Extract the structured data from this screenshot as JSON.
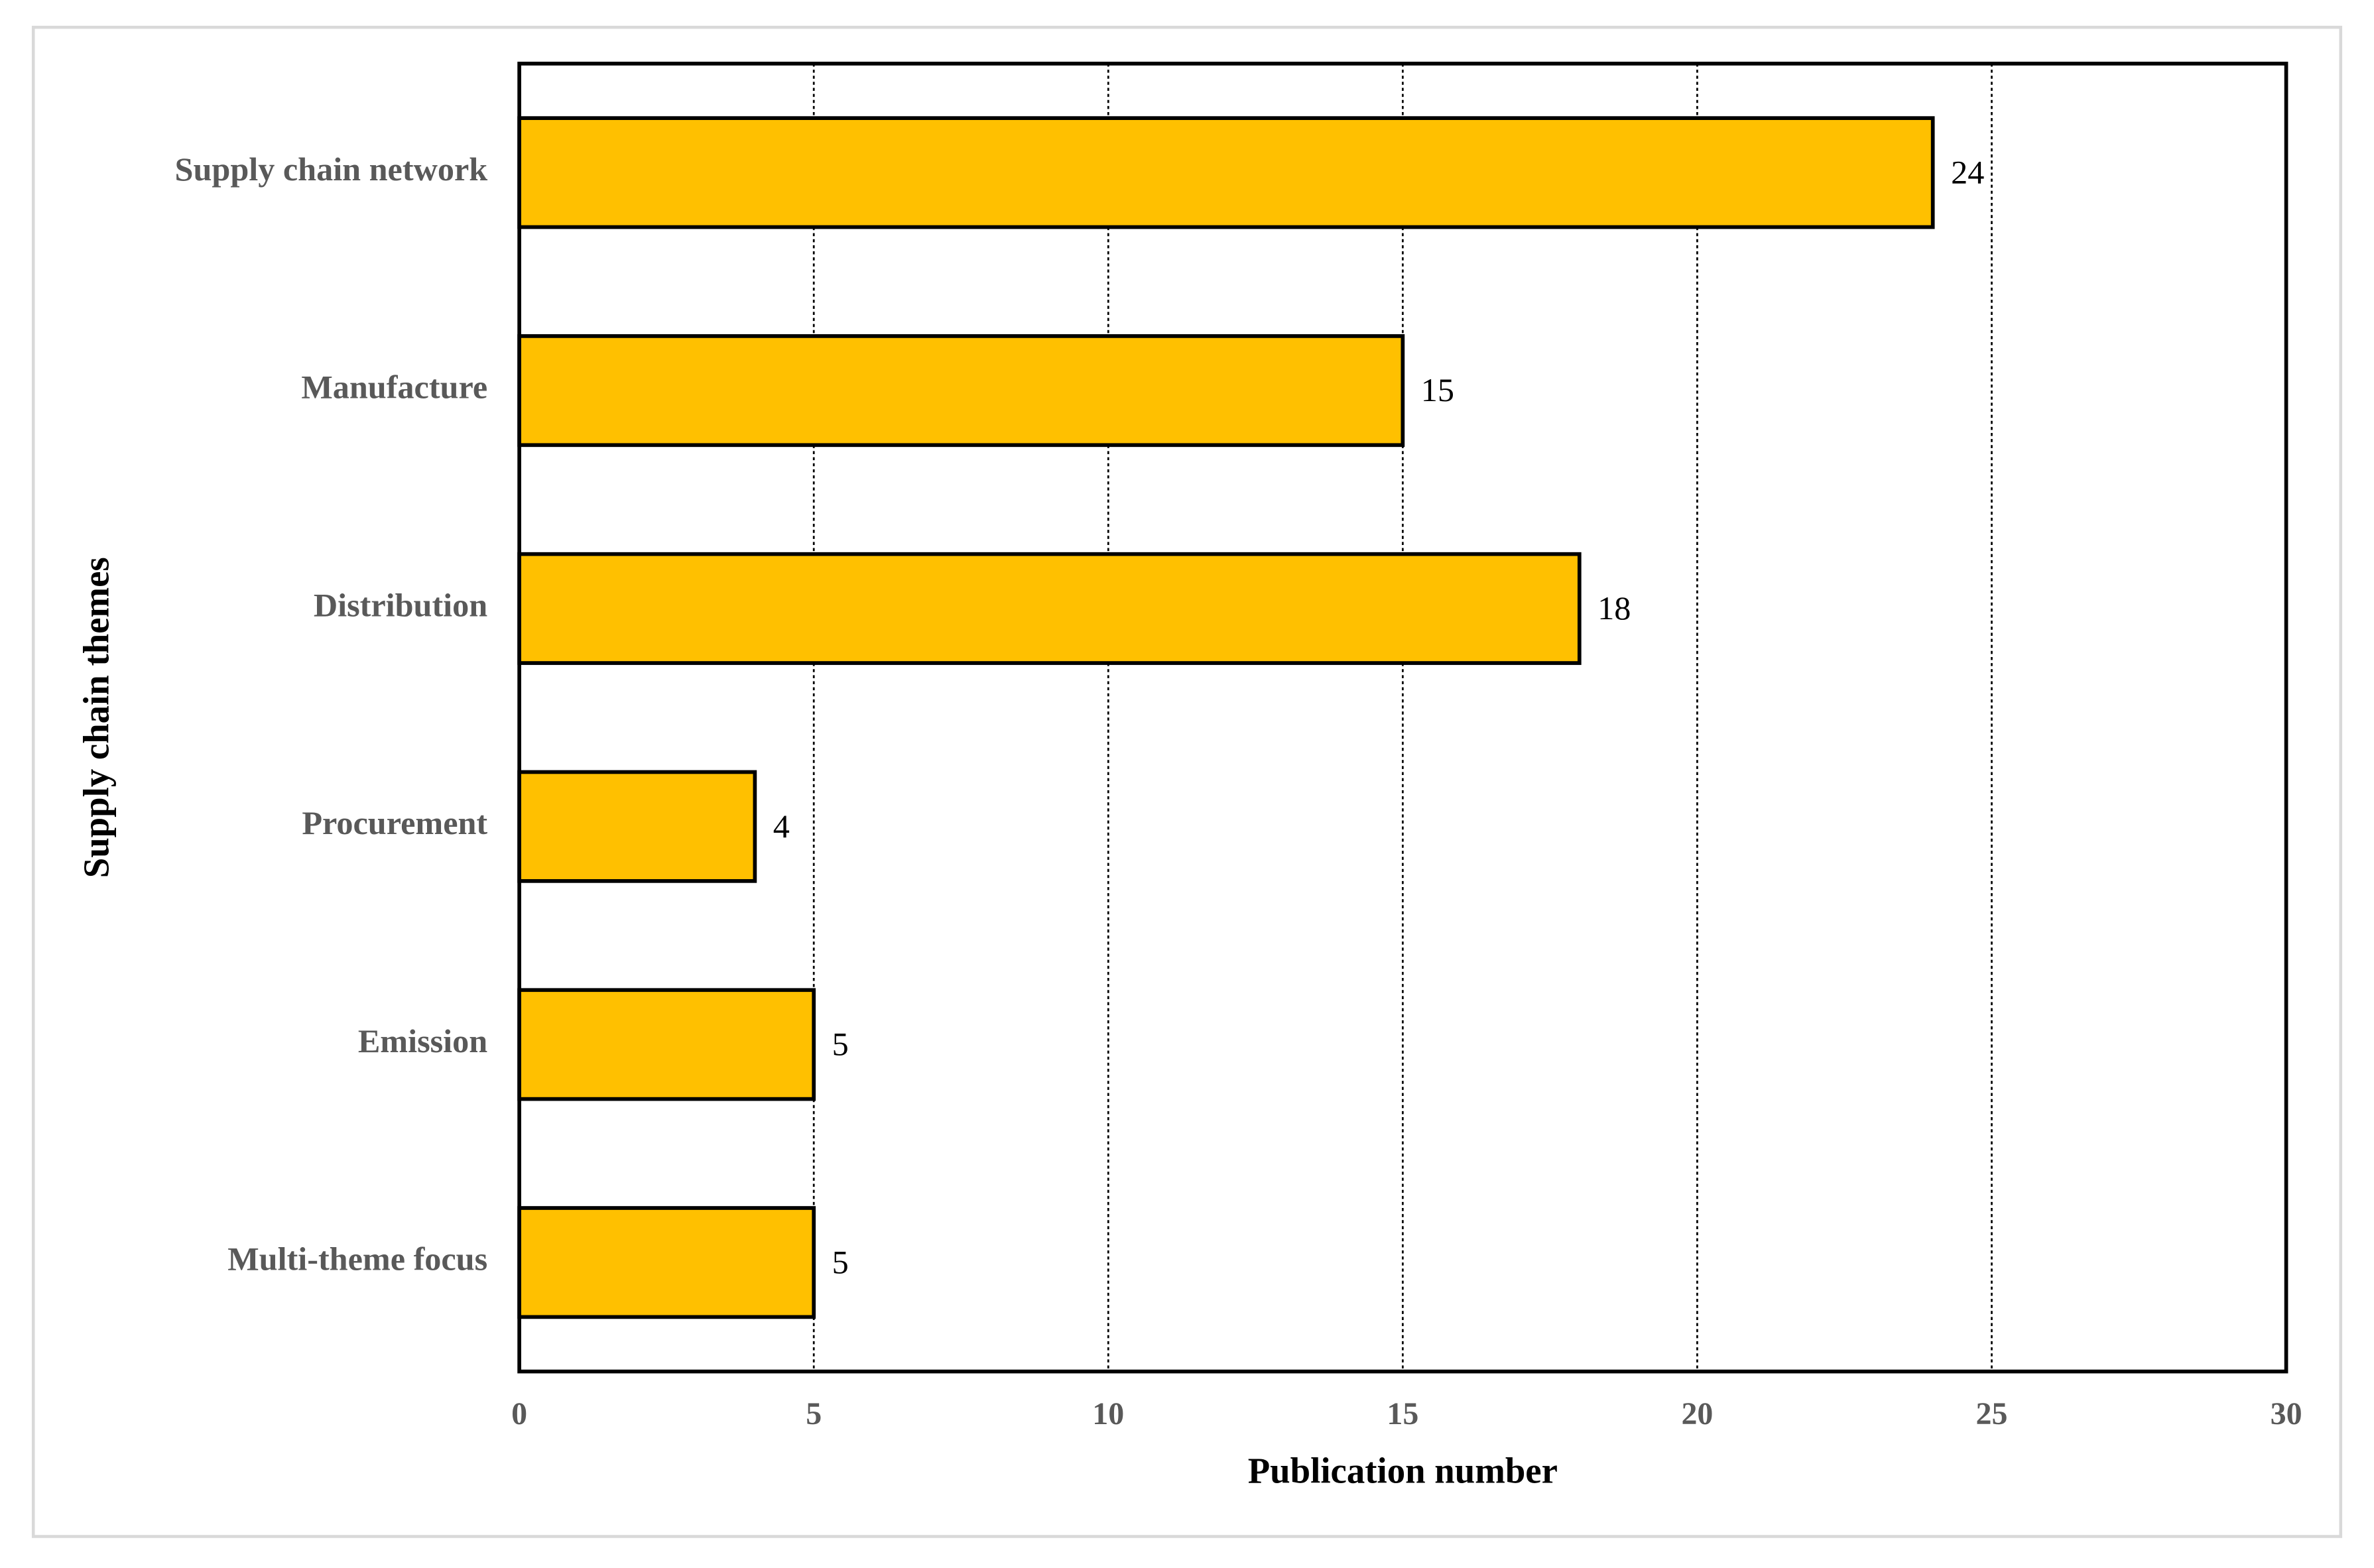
{
  "chart_data": {
    "type": "hbar",
    "x_label": "Publication number",
    "y_label": "Supply chain themes",
    "categories": [
      "Supply chain network",
      "Manufacture",
      "Distribution",
      "Procurement",
      "Emission",
      "Multi-theme focus"
    ],
    "values": [
      24,
      15,
      18,
      4,
      5,
      5
    ],
    "color": "#ffc000",
    "xlim": [
      0,
      30
    ],
    "xticks": [
      0,
      5,
      10,
      15,
      20,
      25,
      30
    ],
    "grid": true
  }
}
